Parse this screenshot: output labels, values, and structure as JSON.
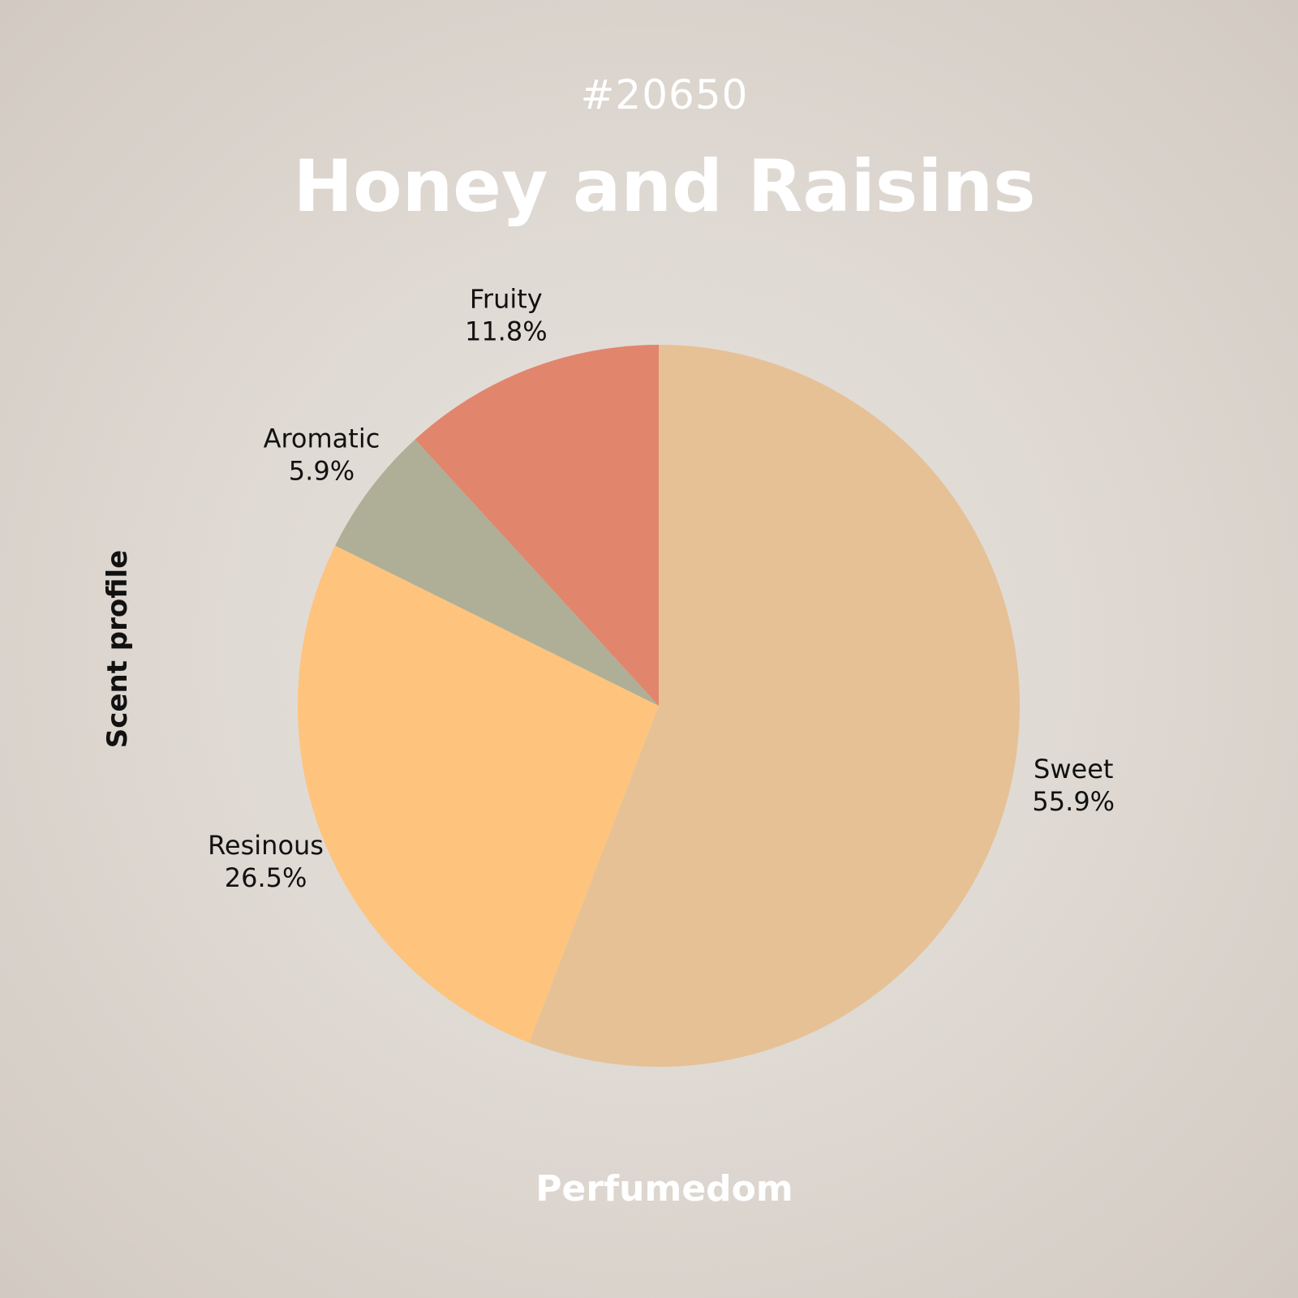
{
  "header": {
    "id_number": "#20650",
    "title": "Honey and Raisins"
  },
  "footer": {
    "brand": "Perfumedom"
  },
  "chart_data": {
    "type": "pie",
    "ylabel": "Scent profile",
    "slices": [
      {
        "label": "Sweet",
        "value": 55.9,
        "value_label": "55.9%",
        "color": "#e6c196"
      },
      {
        "label": "Resinous",
        "value": 26.5,
        "value_label": "26.5%",
        "color": "#fec37d"
      },
      {
        "label": "Aromatic",
        "value": 5.9,
        "value_label": "5.9%",
        "color": "#aeaf96"
      },
      {
        "label": "Fruity",
        "value": 11.8,
        "value_label": "11.8%",
        "color": "#e2856d"
      }
    ],
    "start_angle": "12 o'clock",
    "direction": "clockwise"
  }
}
